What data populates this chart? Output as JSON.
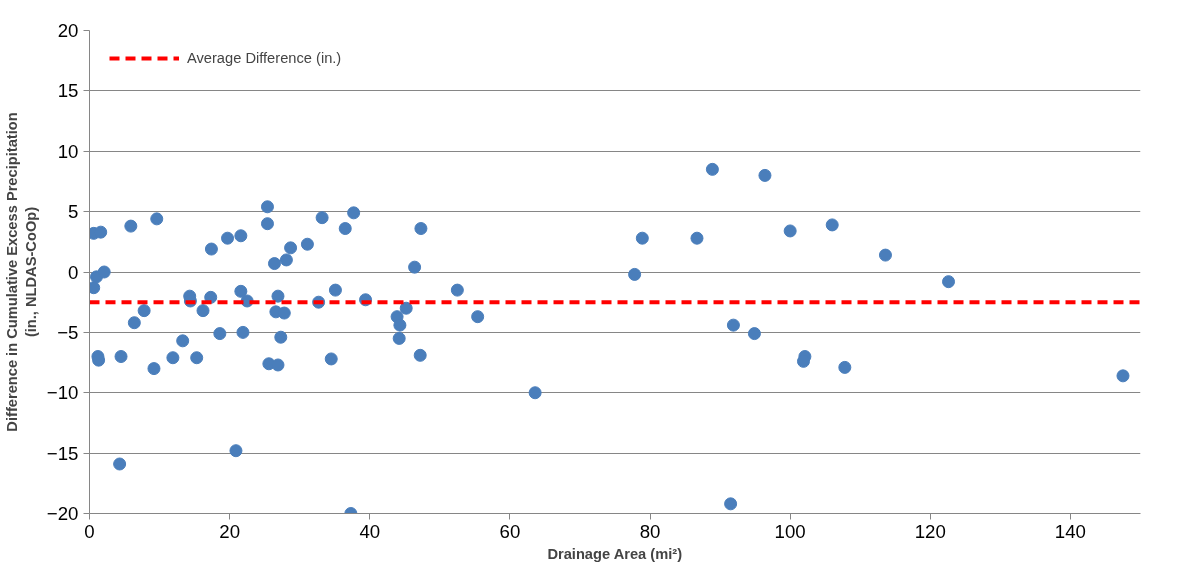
{
  "chart_data": {
    "type": "scatter",
    "xlabel": "Drainage Area (mi²)",
    "ylabel": "Difference in Cumulative Excess Precipitation\n(in., NLDAS-CoOp)",
    "x": [
      0.6,
      1.6,
      5.9,
      9.6,
      25.4,
      25.4,
      17.4,
      19.7,
      21.6,
      26.4,
      28.1,
      28.7,
      1.0,
      2.1,
      0.6,
      14.3,
      14.4,
      17.3,
      16.2,
      21.6,
      22.5,
      26.9,
      26.6,
      27.8,
      7.8,
      6.4,
      13.3,
      18.6,
      21.9,
      27.3,
      1.2,
      1.3,
      4.5,
      9.2,
      11.9,
      15.3,
      25.6,
      26.9,
      20.9,
      4.3,
      31.1,
      33.2,
      36.5,
      37.7,
      47.3,
      46.4,
      35.1,
      32.7,
      39.4,
      52.5,
      45.2,
      43.9,
      44.3,
      44.2,
      55.4,
      34.5,
      47.2,
      63.6,
      37.3,
      88.9,
      96.4,
      78.9,
      86.7,
      100.0,
      106.0,
      113.6,
      122.6,
      77.8,
      91.9,
      94.9,
      102.1,
      101.9,
      107.8,
      147.5,
      91.5
    ],
    "series": [
      {
        "color": "#4a7ebb",
        "values": [
          3.2,
          3.3,
          3.8,
          4.4,
          5.4,
          4.0,
          1.9,
          2.8,
          3.0,
          0.7,
          1.0,
          2.0,
          -0.4,
          0.0,
          -1.3,
          -2.0,
          -2.4,
          -2.1,
          -3.2,
          -1.6,
          -2.4,
          -2.0,
          -3.3,
          -3.4,
          -3.2,
          -4.2,
          -5.7,
          -5.1,
          -5.0,
          -5.4,
          -7.0,
          -7.3,
          -7.0,
          -8.0,
          -7.1,
          -7.1,
          -7.6,
          -7.7,
          -14.8,
          -15.9,
          2.3,
          4.5,
          3.6,
          4.9,
          3.6,
          0.4,
          -1.5,
          -2.5,
          -2.3,
          -1.5,
          -3.0,
          -3.7,
          -4.4,
          -5.5,
          -3.7,
          -7.2,
          -6.9,
          -10.0,
          -20.0,
          8.5,
          8.0,
          2.8,
          2.8,
          3.4,
          3.9,
          1.4,
          -0.8,
          -0.2,
          -4.4,
          -5.1,
          -7.0,
          -7.4,
          -7.9,
          -8.6,
          -19.2
        ]
      }
    ],
    "marker": "circle",
    "xlim": [
      0,
      150
    ],
    "xticks": [
      0,
      20,
      40,
      60,
      80,
      100,
      120,
      140
    ],
    "ylim": [
      -20,
      20
    ],
    "yticks": [
      -20,
      -15,
      -10,
      -5,
      0,
      5,
      10,
      15,
      20
    ],
    "grid": "y",
    "legend": "top left",
    "ref_lines": [
      {
        "axis": "y",
        "value": -2.5,
        "label": "Average Difference (in.)",
        "color": "#ff0000",
        "line_style": "dashed"
      }
    ]
  }
}
